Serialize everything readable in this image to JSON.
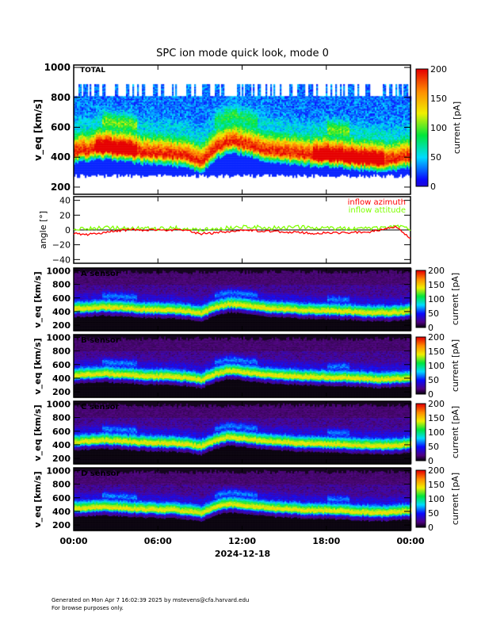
{
  "title": "SPC ion mode quick look, mode 0",
  "footer": {
    "line1": "Generated on Mon Apr  7 16:02:39 2025 by mstevens@cfa.harvard.edu",
    "line2": "For browse purposes only."
  },
  "chart_data": {
    "type": "heatmap",
    "date_label": "2024-12-18",
    "x_ticks": [
      "00:00",
      "06:00",
      "12:00",
      "18:00",
      "00:00"
    ],
    "xlim_hours": [
      0,
      24
    ],
    "hours": [
      0,
      1,
      2,
      3,
      4,
      5,
      6,
      7,
      8,
      9,
      10,
      11,
      12,
      13,
      14,
      15,
      16,
      17,
      18,
      19,
      20,
      21,
      22,
      23,
      24
    ],
    "peak_velocity_kms": [
      430,
      440,
      455,
      445,
      435,
      420,
      415,
      410,
      395,
      360,
      450,
      500,
      480,
      455,
      435,
      425,
      410,
      405,
      400,
      395,
      385,
      375,
      370,
      380,
      400
    ],
    "panels": [
      {
        "label": "TOTAL",
        "ylabel": "v_eq [km/s]",
        "yticks": [
          "200",
          "400",
          "600",
          "800",
          "1000"
        ],
        "ylim": [
          152,
          1016
        ],
        "colorbar_label": "current [pA]",
        "cbar_ticks": [
          "0",
          "50",
          "100",
          "150",
          "200"
        ],
        "clim": [
          0,
          200
        ]
      },
      {
        "label": "A sensor",
        "ylabel": "v_eq [km/s]",
        "yticks": [
          "200",
          "400",
          "600",
          "800",
          "1000"
        ],
        "ylim": [
          120,
          1040
        ],
        "colorbar_label": "current [pA]",
        "cbar_ticks": [
          "0",
          "50",
          "100",
          "150",
          "200"
        ],
        "clim": [
          0,
          200
        ]
      },
      {
        "label": "B sensor",
        "ylabel": "v_eq [km/s]",
        "yticks": [
          "200",
          "400",
          "600",
          "800",
          "1000"
        ],
        "ylim": [
          120,
          1040
        ],
        "colorbar_label": "current [pA]",
        "cbar_ticks": [
          "0",
          "50",
          "100",
          "150",
          "200"
        ],
        "clim": [
          0,
          200
        ]
      },
      {
        "label": "C sensor",
        "ylabel": "v_eq [km/s]",
        "yticks": [
          "200",
          "400",
          "600",
          "800",
          "1000"
        ],
        "ylim": [
          120,
          1040
        ],
        "colorbar_label": "current [pA]",
        "cbar_ticks": [
          "0",
          "50",
          "100",
          "150",
          "200"
        ],
        "clim": [
          0,
          200
        ]
      },
      {
        "label": "D sensor",
        "ylabel": "v_eq [km/s]",
        "yticks": [
          "200",
          "400",
          "600",
          "800",
          "1000"
        ],
        "ylim": [
          120,
          1040
        ],
        "colorbar_label": "current [pA]",
        "cbar_ticks": [
          "0",
          "50",
          "100",
          "150",
          "200"
        ],
        "clim": [
          0,
          200
        ]
      }
    ],
    "angle_panel": {
      "ylabel": "angle [°]",
      "yticks": [
        "-40",
        "-20",
        "0",
        "20",
        "40"
      ],
      "ylim": [
        -45,
        45
      ],
      "series": [
        {
          "name": "inflow azimuth",
          "color": "#ff0000",
          "values": [
            -5,
            -6,
            -4,
            -1,
            0,
            0,
            0,
            0,
            -1,
            -5,
            -4,
            -2,
            0,
            -1,
            -2,
            -3,
            -3,
            -5,
            -4,
            -4,
            -3,
            -3,
            1,
            4,
            -12
          ]
        },
        {
          "name": "inflow attitude",
          "color": "#7fff00",
          "values": [
            2,
            2,
            3,
            3,
            2,
            2,
            2,
            3,
            2,
            0,
            2,
            3,
            4,
            4,
            3,
            3,
            4,
            4,
            2,
            2,
            2,
            2,
            3,
            5,
            1
          ]
        }
      ]
    }
  }
}
